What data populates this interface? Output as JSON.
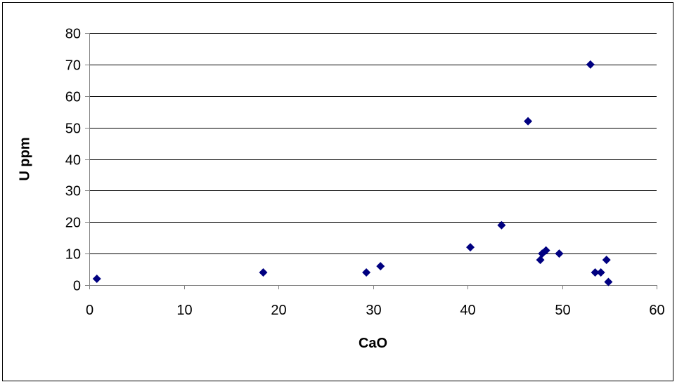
{
  "chart_data": {
    "type": "scatter",
    "title": "",
    "xlabel": "CaO",
    "ylabel": "U ppm",
    "xlim": [
      0,
      60
    ],
    "ylim": [
      0,
      80
    ],
    "xticks": [
      0,
      10,
      20,
      30,
      40,
      50,
      60
    ],
    "yticks": [
      0,
      10,
      20,
      30,
      40,
      50,
      60,
      70,
      80
    ],
    "grid": "horizontal",
    "legend": "none",
    "marker": "diamond",
    "colors": {
      "marker": "#000080",
      "grid": "#000000",
      "axis": "#808080"
    },
    "series": [
      {
        "x": [
          0.8,
          18.4,
          29.3,
          30.8,
          40.3,
          43.6,
          46.4,
          47.7,
          47.9,
          48.3,
          49.7,
          53.0,
          53.5,
          54.1,
          54.7,
          54.9
        ],
        "y": [
          2,
          4,
          4,
          6,
          12,
          19,
          52,
          8,
          10,
          11,
          10,
          70,
          4,
          4,
          8,
          1
        ]
      }
    ]
  }
}
